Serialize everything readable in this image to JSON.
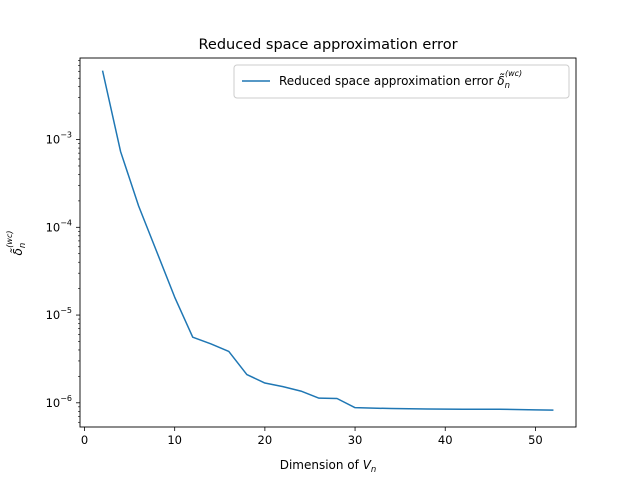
{
  "chart_data": {
    "type": "line",
    "title": "Reduced space approximation error",
    "xlabel_prefix": "Dimension of ",
    "xlabel_var": "V",
    "xlabel_sub": "n",
    "ylabel_main": "δ̃",
    "ylabel_sub": "n",
    "ylabel_sup": "(wc)",
    "yscale": "log",
    "xlim": [
      -0.5,
      54.5
    ],
    "ylim": [
      5.3e-07,
      0.0085
    ],
    "grid": false,
    "legend_position": "top-right",
    "xticks": [
      0,
      10,
      20,
      30,
      40,
      50
    ],
    "xtick_labels": [
      "0",
      "10",
      "20",
      "30",
      "40",
      "50"
    ],
    "yticks": [
      1e-06,
      1e-05,
      0.0001,
      0.001
    ],
    "ytick_labels": [
      {
        "base": "10",
        "exp": "−6"
      },
      {
        "base": "10",
        "exp": "−5"
      },
      {
        "base": "10",
        "exp": "−4"
      },
      {
        "base": "10",
        "exp": "−3"
      }
    ],
    "series": [
      {
        "name_prefix": "Reduced space approximation error ",
        "name_symbol": "δ̃",
        "name_sub": "n",
        "name_sup": "(wc)",
        "color": "#1f77b4",
        "x": [
          2,
          4,
          6,
          8,
          10,
          12,
          14,
          16,
          18,
          20,
          22,
          24,
          26,
          28,
          30,
          34,
          38,
          42,
          46,
          50,
          52
        ],
        "y": [
          0.0061,
          0.00073,
          0.000175,
          5.3e-05,
          1.6e-05,
          5.6e-06,
          4.7e-06,
          3.85e-06,
          2.1e-06,
          1.68e-06,
          1.53e-06,
          1.36e-06,
          1.13e-06,
          1.12e-06,
          8.8e-07,
          8.6e-07,
          8.5e-07,
          8.45e-07,
          8.45e-07,
          8.3e-07,
          8.25e-07
        ]
      }
    ]
  }
}
